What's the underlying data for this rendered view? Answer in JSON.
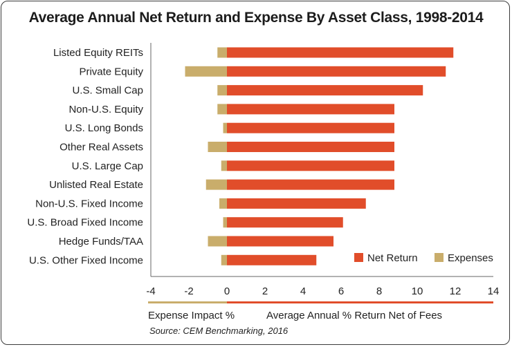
{
  "chart_data": {
    "type": "bar",
    "orientation": "horizontal",
    "stacked": "diverging",
    "title": "Average Annual Net Return and Expense By Asset Class, 1998-2014",
    "categories": [
      "Listed Equity REITs",
      "Private Equity",
      "U.S. Small Cap",
      "Non-U.S. Equity",
      "U.S. Long Bonds",
      "Other Real Assets",
      "U.S. Large Cap",
      "Unlisted Real Estate",
      "Non-U.S. Fixed Income",
      "U.S. Broad Fixed Income",
      "Hedge Funds/TAA",
      "U.S. Other Fixed Income"
    ],
    "series": [
      {
        "name": "Net Return",
        "color": "#e14d2a",
        "values": [
          11.9,
          11.5,
          10.3,
          8.8,
          8.8,
          8.8,
          8.8,
          8.8,
          7.3,
          6.1,
          5.6,
          4.7
        ]
      },
      {
        "name": "Expenses",
        "color": "#c9ad6b",
        "values": [
          -0.5,
          -2.2,
          -0.5,
          -0.5,
          -0.2,
          -1.0,
          -0.3,
          -1.1,
          -0.4,
          -0.2,
          -1.0,
          -0.3
        ]
      }
    ],
    "xlim": [
      -4,
      14
    ],
    "xticks": [
      -4,
      -2,
      0,
      2,
      4,
      6,
      8,
      10,
      12,
      14
    ],
    "legend_position": "bottom-right",
    "axis_footer": {
      "left_label": "Expense Impact %",
      "right_label": "Average Annual % Return Net of Fees"
    },
    "source": "Source: CEM Benchmarking, 2016"
  }
}
